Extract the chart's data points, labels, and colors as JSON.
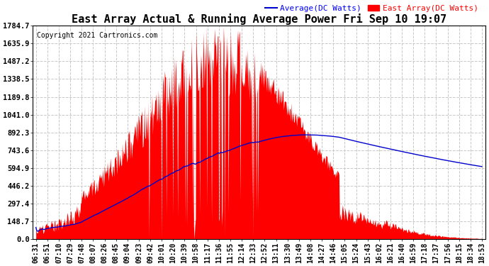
{
  "title": "East Array Actual & Running Average Power Fri Sep 10 19:07",
  "copyright": "Copyright 2021 Cartronics.com",
  "legend_avg": "Average(DC Watts)",
  "legend_east": "East Array(DC Watts)",
  "legend_avg_color": "blue",
  "legend_east_color": "red",
  "ylabel_values": [
    0.0,
    148.7,
    297.4,
    446.2,
    594.9,
    743.6,
    892.3,
    1041.0,
    1189.8,
    1338.5,
    1487.2,
    1635.9,
    1784.7
  ],
  "ymax": 1784.7,
  "ymin": 0.0,
  "background_color": "#ffffff",
  "plot_bg_color": "#ffffff",
  "grid_color": "#c8c8c8",
  "bar_color": "#ff0000",
  "avg_line_color": "#0000cc",
  "x_labels": [
    "06:31",
    "06:51",
    "07:10",
    "07:29",
    "07:48",
    "08:07",
    "08:26",
    "08:45",
    "09:04",
    "09:23",
    "09:42",
    "10:01",
    "10:20",
    "10:39",
    "10:58",
    "11:17",
    "11:36",
    "11:55",
    "12:14",
    "12:33",
    "12:52",
    "13:11",
    "13:30",
    "13:49",
    "14:08",
    "14:27",
    "14:46",
    "15:05",
    "15:24",
    "15:43",
    "16:02",
    "16:21",
    "16:40",
    "16:59",
    "17:18",
    "17:37",
    "17:56",
    "18:15",
    "18:34",
    "18:53"
  ],
  "title_fontsize": 11,
  "copyright_fontsize": 7,
  "tick_fontsize": 7,
  "legend_fontsize": 8,
  "ytick_fontsize": 7.5
}
